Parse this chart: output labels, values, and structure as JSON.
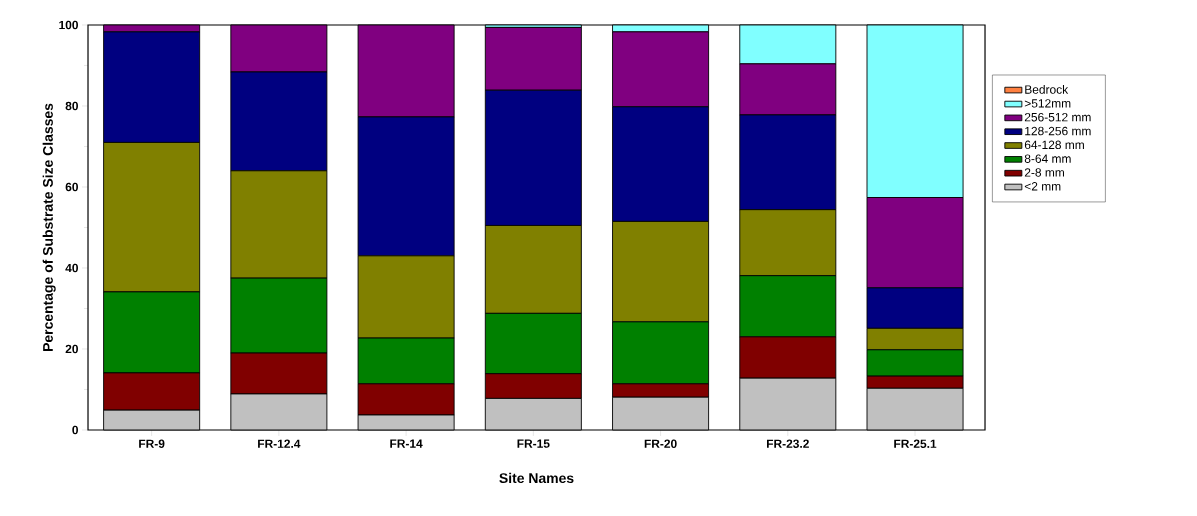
{
  "chart_data": {
    "type": "bar",
    "stacked": true,
    "xlabel": "Site Names",
    "ylabel": "Percentage of Substrate Size Classes",
    "categories": [
      "FR-9",
      "FR-12.4",
      "FR-14",
      "FR-15",
      "FR-20",
      "FR-23.2",
      "FR-25.1"
    ],
    "ylim": [
      0,
      100
    ],
    "yticks": [
      0,
      20,
      40,
      60,
      80,
      100
    ],
    "legend": "right",
    "series": [
      {
        "name": "<2 mm",
        "color": "#c0c0c0",
        "values": [
          4.9,
          8.9,
          3.7,
          7.8,
          8.1,
          12.8,
          10.3
        ]
      },
      {
        "name": "2-8 mm",
        "color": "#800000",
        "values": [
          9.2,
          10.1,
          7.7,
          6.1,
          3.3,
          10.2,
          3.0
        ]
      },
      {
        "name": "8-64 mm",
        "color": "#008000",
        "values": [
          20.0,
          18.5,
          11.3,
          14.9,
          15.3,
          15.1,
          6.5
        ]
      },
      {
        "name": "64-128 mm",
        "color": "#808000",
        "values": [
          36.9,
          26.5,
          20.3,
          21.7,
          24.8,
          16.3,
          5.3
        ]
      },
      {
        "name": "128-256 mm",
        "color": "#000080",
        "values": [
          27.3,
          24.4,
          34.3,
          33.4,
          28.3,
          23.4,
          10.0
        ]
      },
      {
        "name": "256-512 mm",
        "color": "#800080",
        "values": [
          1.7,
          11.6,
          22.7,
          15.5,
          18.5,
          12.6,
          22.3
        ]
      },
      {
        "name": ">512mm",
        "color": "#80ffff",
        "values": [
          0,
          0,
          0,
          0.6,
          1.7,
          9.6,
          42.6
        ]
      },
      {
        "name": "Bedrock",
        "color": "#ff8040",
        "values": [
          0,
          0,
          0,
          0,
          0,
          0,
          0
        ]
      }
    ]
  }
}
